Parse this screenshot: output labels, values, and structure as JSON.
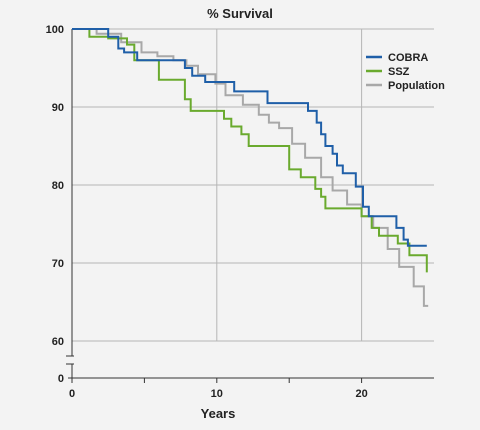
{
  "chart_data": {
    "type": "line",
    "title": "% Survival",
    "xlabel": "Years",
    "ylabel": "",
    "xlim": [
      0,
      25
    ],
    "ylim": [
      60,
      100
    ],
    "axis_break": true,
    "baseline_tick": "0",
    "grid": true,
    "legend_position": "top-right",
    "x_ticks": [
      0,
      10,
      20
    ],
    "x_minor_ticks": [
      5,
      15
    ],
    "y_ticks": [
      60,
      70,
      80,
      90,
      100
    ],
    "y_tick_labels": [
      "60",
      "70",
      "80",
      "90",
      "100"
    ],
    "x_tick_labels": [
      "0",
      "10",
      "20"
    ],
    "series": [
      {
        "name": "COBRA",
        "color": "#1f5fa8",
        "step": true,
        "x": [
          0,
          2.5,
          3.2,
          3.6,
          4.5,
          5.5,
          7.8,
          8.3,
          9.2,
          11.2,
          13.5,
          16.3,
          16.9,
          17.2,
          17.5,
          18,
          18.3,
          18.7,
          19.2,
          19.6,
          20.1,
          20.5,
          22.4,
          22.9,
          23.2,
          24.5
        ],
        "y": [
          100,
          99,
          97.5,
          97,
          96,
          96,
          95,
          94,
          93.2,
          92,
          90.5,
          89.5,
          88,
          86.5,
          85,
          84,
          82.5,
          81.5,
          81.5,
          79.8,
          77.2,
          76,
          74.5,
          73,
          72.2,
          72.2
        ]
      },
      {
        "name": "SSZ",
        "color": "#6aaa2e",
        "step": true,
        "x": [
          0,
          1.2,
          2.5,
          3.8,
          4.3,
          6,
          7.8,
          8.2,
          9.2,
          10.5,
          11,
          11.7,
          12.2,
          13,
          15,
          15.8,
          16.8,
          17.2,
          17.5,
          20,
          20.7,
          21.2,
          22.5,
          23.3,
          24.5
        ],
        "y": [
          100,
          99,
          98.8,
          98,
          96,
          93.5,
          91,
          89.5,
          89.5,
          88.5,
          87.5,
          86.5,
          85,
          85,
          82,
          81,
          79.5,
          78.5,
          77,
          76,
          74.5,
          73.5,
          72.5,
          71,
          68.8
        ]
      },
      {
        "name": "Population",
        "color": "#a8a8a8",
        "step": true,
        "x": [
          0,
          1.7,
          3.4,
          4.8,
          5.9,
          7,
          7.9,
          8.7,
          9.9,
          10.6,
          11.8,
          12.9,
          13.6,
          14.3,
          15.2,
          16.1,
          17.2,
          18,
          19,
          20,
          20.8,
          21.8,
          22.6,
          23.6,
          24.3,
          24.6
        ],
        "y": [
          100,
          99.4,
          98.3,
          97,
          96.5,
          96,
          95.3,
          94.2,
          93,
          91.5,
          90.3,
          89,
          88,
          87.3,
          85.3,
          83.5,
          81,
          79.3,
          77.5,
          76,
          74.5,
          71.8,
          69.5,
          67,
          64.5,
          64.5
        ]
      }
    ]
  }
}
